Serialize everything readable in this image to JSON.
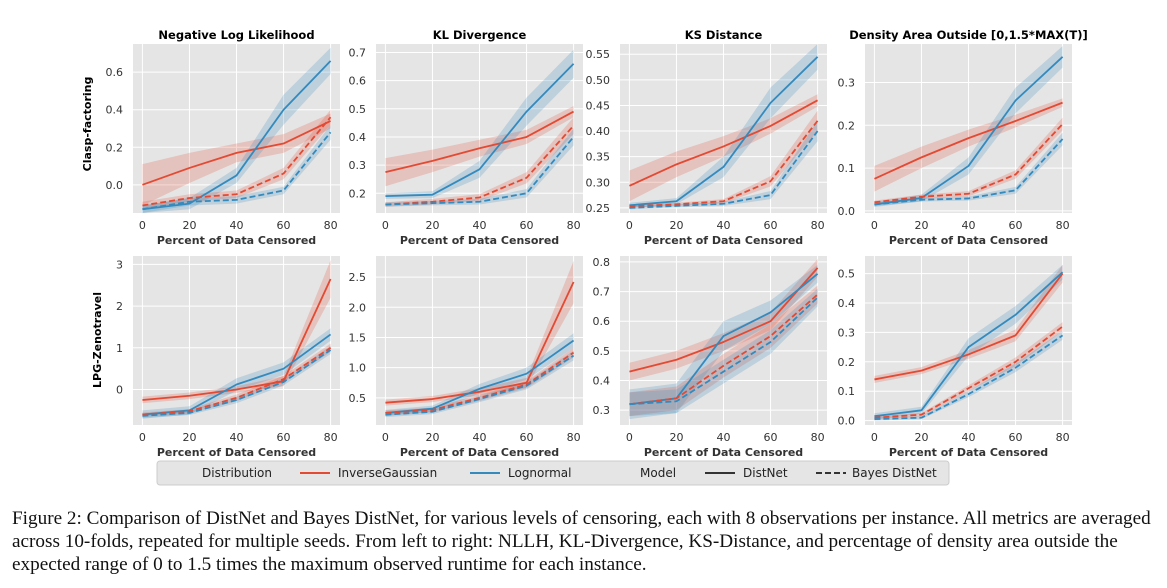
{
  "colors": {
    "inverse_gaussian": "#e24a33",
    "lognormal": "#348abd",
    "panel_bg": "#e5e5e5",
    "grid": "#ffffff"
  },
  "legend": {
    "distribution_header": "Distribution",
    "inverse_gaussian": "InverseGaussian",
    "lognormal": "Lognormal",
    "model_header": "Model",
    "distnet": "DistNet",
    "bayes_distnet": "Bayes DistNet"
  },
  "row_labels": [
    "Clasp-factoring",
    "LPG-Zenotravel"
  ],
  "caption": "Figure 2: Comparison of DistNet and Bayes DistNet, for various levels of censoring, each with 8 observations per instance. All metrics are averaged across 10-folds, repeated for multiple seeds. From left to right: NLLH, KL-Divergence, KS-Distance, and percentage of density area outside the expected range of 0 to 1.5 times the maximum observed runtime for each instance.",
  "chart_data": [
    {
      "type": "line",
      "row": "Clasp-factoring",
      "title": "Negative Log Likelihood",
      "xlabel": "Percent of Data Censored",
      "ylabel": "",
      "x": [
        0,
        20,
        40,
        60,
        80
      ],
      "xticks": [
        0,
        20,
        40,
        60,
        80
      ],
      "ylim": [
        -0.15,
        0.75
      ],
      "yticks": [
        0.0,
        0.2,
        0.4,
        0.6
      ],
      "ytick_labels": [
        "0.0",
        "0.2",
        "0.4",
        "0.6"
      ],
      "series": [
        {
          "name": "InverseGaussian DistNet",
          "values": [
            0.0,
            0.09,
            0.17,
            0.22,
            0.34
          ],
          "band": [
            0.11,
            0.08,
            0.05,
            0.05,
            0.04
          ]
        },
        {
          "name": "Lognormal DistNet",
          "values": [
            -0.13,
            -0.1,
            0.05,
            0.4,
            0.66
          ],
          "band": [
            0.02,
            0.03,
            0.04,
            0.08,
            0.07
          ]
        },
        {
          "name": "InverseGaussian Bayes DistNet",
          "values": [
            -0.11,
            -0.07,
            -0.05,
            0.06,
            0.36
          ],
          "band": [
            0.02,
            0.02,
            0.02,
            0.03,
            0.04
          ]
        },
        {
          "name": "Lognormal Bayes DistNet",
          "values": [
            -0.13,
            -0.09,
            -0.08,
            -0.03,
            0.28
          ],
          "band": [
            0.02,
            0.02,
            0.02,
            0.02,
            0.04
          ]
        }
      ]
    },
    {
      "type": "line",
      "row": "Clasp-factoring",
      "title": "KL Divergence",
      "xlabel": "Percent of Data Censored",
      "ylabel": "",
      "x": [
        0,
        20,
        40,
        60,
        80
      ],
      "xticks": [
        0,
        20,
        40,
        60,
        80
      ],
      "ylim": [
        0.13,
        0.73
      ],
      "yticks": [
        0.2,
        0.3,
        0.4,
        0.5,
        0.6,
        0.7
      ],
      "ytick_labels": [
        "0.2",
        "0.3",
        "0.4",
        "0.5",
        "0.6",
        "0.7"
      ],
      "series": [
        {
          "name": "InverseGaussian DistNet",
          "values": [
            0.275,
            0.315,
            0.36,
            0.4,
            0.49
          ],
          "band": [
            0.05,
            0.04,
            0.03,
            0.025,
            0.02
          ]
        },
        {
          "name": "Lognormal DistNet",
          "values": [
            0.19,
            0.195,
            0.285,
            0.49,
            0.66
          ],
          "band": [
            0.01,
            0.012,
            0.03,
            0.05,
            0.05
          ]
        },
        {
          "name": "InverseGaussian Bayes DistNet",
          "values": [
            0.16,
            0.17,
            0.185,
            0.255,
            0.44
          ],
          "band": [
            0.008,
            0.01,
            0.012,
            0.02,
            0.03
          ]
        },
        {
          "name": "Lognormal Bayes DistNet",
          "values": [
            0.16,
            0.165,
            0.17,
            0.2,
            0.4
          ],
          "band": [
            0.008,
            0.008,
            0.01,
            0.015,
            0.03
          ]
        }
      ]
    },
    {
      "type": "line",
      "row": "Clasp-factoring",
      "title": "KS Distance",
      "xlabel": "Percent of Data Censored",
      "ylabel": "",
      "x": [
        0,
        20,
        40,
        60,
        80
      ],
      "xticks": [
        0,
        20,
        40,
        60,
        80
      ],
      "ylim": [
        0.24,
        0.57
      ],
      "yticks": [
        0.25,
        0.3,
        0.35,
        0.4,
        0.45,
        0.5,
        0.55
      ],
      "ytick_labels": [
        "0.25",
        "0.30",
        "0.35",
        "0.40",
        "0.45",
        "0.50",
        "0.55"
      ],
      "series": [
        {
          "name": "InverseGaussian DistNet",
          "values": [
            0.293,
            0.335,
            0.37,
            0.41,
            0.46
          ],
          "band": [
            0.03,
            0.025,
            0.02,
            0.015,
            0.012
          ]
        },
        {
          "name": "Lognormal DistNet",
          "values": [
            0.255,
            0.263,
            0.33,
            0.455,
            0.545
          ],
          "band": [
            0.005,
            0.006,
            0.02,
            0.03,
            0.025
          ]
        },
        {
          "name": "InverseGaussian Bayes DistNet",
          "values": [
            0.253,
            0.257,
            0.263,
            0.302,
            0.42
          ],
          "band": [
            0.003,
            0.003,
            0.004,
            0.01,
            0.02
          ]
        },
        {
          "name": "Lognormal Bayes DistNet",
          "values": [
            0.25,
            0.254,
            0.258,
            0.275,
            0.4
          ],
          "band": [
            0.003,
            0.003,
            0.004,
            0.008,
            0.02
          ]
        }
      ]
    },
    {
      "type": "line",
      "row": "Clasp-factoring",
      "title": "Density Area Outside [0,1.5*MAX(T)]",
      "xlabel": "Percent of Data Censored",
      "ylabel": "",
      "x": [
        0,
        20,
        40,
        60,
        80
      ],
      "xticks": [
        0,
        20,
        40,
        60,
        80
      ],
      "ylim": [
        -0.005,
        0.39
      ],
      "yticks": [
        0.0,
        0.1,
        0.2,
        0.3
      ],
      "ytick_labels": [
        "0.0",
        "0.1",
        "0.2",
        "0.3"
      ],
      "series": [
        {
          "name": "InverseGaussian DistNet",
          "values": [
            0.075,
            0.125,
            0.17,
            0.21,
            0.253
          ],
          "band": [
            0.03,
            0.025,
            0.02,
            0.015,
            0.01
          ]
        },
        {
          "name": "Lognormal DistNet",
          "values": [
            0.015,
            0.03,
            0.105,
            0.258,
            0.36
          ],
          "band": [
            0.006,
            0.008,
            0.02,
            0.03,
            0.025
          ]
        },
        {
          "name": "InverseGaussian Bayes DistNet",
          "values": [
            0.02,
            0.033,
            0.04,
            0.085,
            0.203
          ],
          "band": [
            0.004,
            0.005,
            0.006,
            0.01,
            0.015
          ]
        },
        {
          "name": "Lognormal Bayes DistNet",
          "values": [
            0.015,
            0.026,
            0.029,
            0.048,
            0.168
          ],
          "band": [
            0.004,
            0.004,
            0.005,
            0.008,
            0.015
          ]
        }
      ]
    },
    {
      "type": "line",
      "row": "LPG-Zenotravel",
      "title": "",
      "xlabel": "Percent of Data Censored",
      "ylabel": "",
      "x": [
        0,
        20,
        40,
        60,
        80
      ],
      "xticks": [
        0,
        20,
        40,
        60,
        80
      ],
      "ylim": [
        -0.85,
        3.2
      ],
      "yticks": [
        0,
        1,
        2,
        3
      ],
      "ytick_labels": [
        "0",
        "1",
        "2",
        "3"
      ],
      "series": [
        {
          "name": "InverseGaussian DistNet",
          "values": [
            -0.25,
            -0.15,
            0.0,
            0.2,
            2.65
          ],
          "band": [
            0.08,
            0.08,
            0.08,
            0.12,
            0.45
          ]
        },
        {
          "name": "Lognormal DistNet",
          "values": [
            -0.6,
            -0.5,
            0.12,
            0.5,
            1.32
          ],
          "band": [
            0.1,
            0.1,
            0.15,
            0.15,
            0.15
          ]
        },
        {
          "name": "InverseGaussian Bayes DistNet",
          "values": [
            -0.6,
            -0.52,
            -0.2,
            0.25,
            1.0
          ],
          "band": [
            0.05,
            0.05,
            0.08,
            0.08,
            0.1
          ]
        },
        {
          "name": "Lognormal Bayes DistNet",
          "values": [
            -0.63,
            -0.56,
            -0.25,
            0.18,
            0.95
          ],
          "band": [
            0.05,
            0.05,
            0.08,
            0.08,
            0.1
          ]
        }
      ]
    },
    {
      "type": "line",
      "row": "LPG-Zenotravel",
      "title": "",
      "xlabel": "Percent of Data Censored",
      "ylabel": "",
      "x": [
        0,
        20,
        40,
        60,
        80
      ],
      "xticks": [
        0,
        20,
        40,
        60,
        80
      ],
      "ylim": [
        0.05,
        2.85
      ],
      "yticks": [
        0.5,
        1.0,
        1.5,
        2.0,
        2.5
      ],
      "ytick_labels": [
        "0.5",
        "1.0",
        "1.5",
        "2.0",
        "2.5"
      ],
      "series": [
        {
          "name": "InverseGaussian DistNet",
          "values": [
            0.42,
            0.48,
            0.6,
            0.75,
            2.42
          ],
          "band": [
            0.05,
            0.05,
            0.06,
            0.08,
            0.35
          ]
        },
        {
          "name": "Lognormal DistNet",
          "values": [
            0.25,
            0.32,
            0.65,
            0.9,
            1.45
          ],
          "band": [
            0.05,
            0.05,
            0.08,
            0.1,
            0.12
          ]
        },
        {
          "name": "InverseGaussian Bayes DistNet",
          "values": [
            0.25,
            0.3,
            0.5,
            0.72,
            1.25
          ],
          "band": [
            0.04,
            0.04,
            0.05,
            0.06,
            0.08
          ]
        },
        {
          "name": "Lognormal Bayes DistNet",
          "values": [
            0.22,
            0.27,
            0.48,
            0.7,
            1.2
          ],
          "band": [
            0.04,
            0.04,
            0.05,
            0.06,
            0.08
          ]
        }
      ]
    },
    {
      "type": "line",
      "row": "LPG-Zenotravel",
      "title": "",
      "xlabel": "Percent of Data Censored",
      "ylabel": "",
      "x": [
        0,
        20,
        40,
        60,
        80
      ],
      "xticks": [
        0,
        20,
        40,
        60,
        80
      ],
      "ylim": [
        0.25,
        0.82
      ],
      "yticks": [
        0.3,
        0.4,
        0.5,
        0.6,
        0.7,
        0.8
      ],
      "ytick_labels": [
        "0.3",
        "0.4",
        "0.5",
        "0.6",
        "0.7",
        "0.8"
      ],
      "series": [
        {
          "name": "InverseGaussian DistNet",
          "values": [
            0.43,
            0.47,
            0.53,
            0.6,
            0.78
          ],
          "band": [
            0.03,
            0.03,
            0.03,
            0.03,
            0.03
          ]
        },
        {
          "name": "Lognormal DistNet",
          "values": [
            0.32,
            0.34,
            0.55,
            0.63,
            0.76
          ],
          "band": [
            0.05,
            0.05,
            0.05,
            0.04,
            0.03
          ]
        },
        {
          "name": "InverseGaussian Bayes DistNet",
          "values": [
            0.32,
            0.34,
            0.45,
            0.55,
            0.69
          ],
          "band": [
            0.04,
            0.04,
            0.04,
            0.04,
            0.03
          ]
        },
        {
          "name": "Lognormal Bayes DistNet",
          "values": [
            0.32,
            0.33,
            0.43,
            0.53,
            0.68
          ],
          "band": [
            0.04,
            0.04,
            0.04,
            0.04,
            0.03
          ]
        }
      ]
    },
    {
      "type": "line",
      "row": "LPG-Zenotravel",
      "title": "",
      "xlabel": "Percent of Data Censored",
      "ylabel": "",
      "x": [
        0,
        20,
        40,
        60,
        80
      ],
      "xticks": [
        0,
        20,
        40,
        60,
        80
      ],
      "ylim": [
        -0.015,
        0.56
      ],
      "yticks": [
        0.0,
        0.1,
        0.2,
        0.3,
        0.4,
        0.5
      ],
      "ytick_labels": [
        "0.0",
        "0.1",
        "0.2",
        "0.3",
        "0.4",
        "0.5"
      ],
      "series": [
        {
          "name": "InverseGaussian DistNet",
          "values": [
            0.14,
            0.17,
            0.225,
            0.29,
            0.5
          ],
          "band": [
            0.012,
            0.012,
            0.015,
            0.02,
            0.03
          ]
        },
        {
          "name": "Lognormal DistNet",
          "values": [
            0.015,
            0.035,
            0.25,
            0.36,
            0.505
          ],
          "band": [
            0.01,
            0.012,
            0.03,
            0.03,
            0.025
          ]
        },
        {
          "name": "InverseGaussian Bayes DistNet",
          "values": [
            0.01,
            0.02,
            0.11,
            0.2,
            0.32
          ],
          "band": [
            0.005,
            0.006,
            0.01,
            0.015,
            0.015
          ]
        },
        {
          "name": "Lognormal Bayes DistNet",
          "values": [
            0.005,
            0.01,
            0.09,
            0.18,
            0.29
          ],
          "band": [
            0.005,
            0.005,
            0.01,
            0.015,
            0.015
          ]
        }
      ]
    }
  ]
}
